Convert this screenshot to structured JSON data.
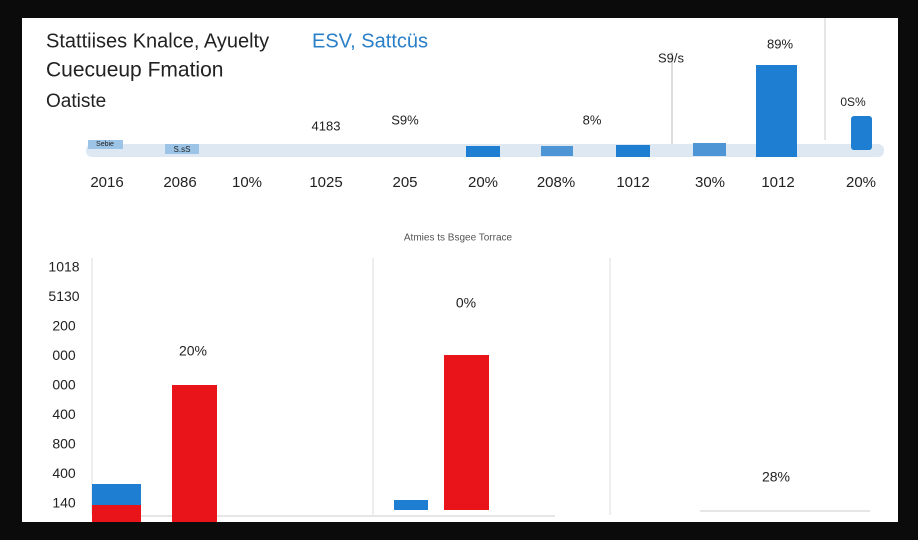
{
  "header": {
    "title": "Stattiises Knalce, Ayuelty",
    "title_highlight": "ESV, Sattcüs",
    "subtitle": "Cuecueup Fmation",
    "subtitle2": "Oatiste"
  },
  "top_panel": {
    "bar_labels": [
      "4183",
      "S9%",
      "8%",
      "S9/s",
      "89%",
      "0S%"
    ],
    "strip_labels": [
      "Sebie",
      "S.sS"
    ],
    "x_labels": [
      "2016",
      "2086",
      "10%",
      "1025",
      "205",
      "20%",
      "208%",
      "1012",
      "30%",
      "1012",
      "20%"
    ]
  },
  "bottom_panel": {
    "caption": "Atmies ts Bsgee Torrace",
    "y_labels": [
      "1018",
      "5130",
      "200",
      "000",
      "000",
      "400",
      "800",
      "400",
      "140"
    ],
    "bar_labels": [
      "20%",
      "0%",
      "28%"
    ]
  }
}
